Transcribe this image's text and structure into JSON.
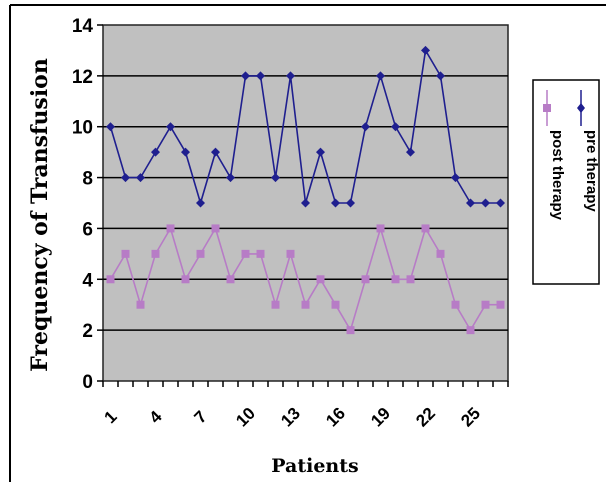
{
  "chart_data": {
    "type": "line",
    "xlabel": "Patients",
    "ylabel": "Frequency of Transfusion",
    "ylim": [
      0,
      14
    ],
    "yticks": [
      0,
      2,
      4,
      6,
      8,
      10,
      12,
      14
    ],
    "xtick_labels": [
      "1",
      "4",
      "7",
      "10",
      "13",
      "16",
      "19",
      "22",
      "25"
    ],
    "x": [
      1,
      2,
      3,
      4,
      5,
      6,
      7,
      8,
      9,
      10,
      11,
      12,
      13,
      14,
      15,
      16,
      17,
      18,
      19,
      20,
      21,
      22,
      23,
      24,
      25,
      26,
      27
    ],
    "grid": "horizontal",
    "legend_position": "right",
    "series": [
      {
        "name": "pre therapy",
        "color": "#1f1f8f",
        "marker": "diamond",
        "values": [
          10,
          8,
          8,
          9,
          10,
          9,
          7,
          9,
          8,
          12,
          12,
          8,
          12,
          7,
          9,
          7,
          7,
          10,
          12,
          10,
          9,
          13,
          12,
          8,
          7,
          7,
          7
        ]
      },
      {
        "name": "post therapy",
        "color": "#b77cc6",
        "marker": "square",
        "values": [
          4,
          5,
          3,
          5,
          6,
          4,
          5,
          6,
          4,
          5,
          5,
          3,
          5,
          3,
          4,
          3,
          2,
          4,
          6,
          4,
          4,
          6,
          5,
          3,
          2,
          3,
          3
        ]
      }
    ]
  }
}
